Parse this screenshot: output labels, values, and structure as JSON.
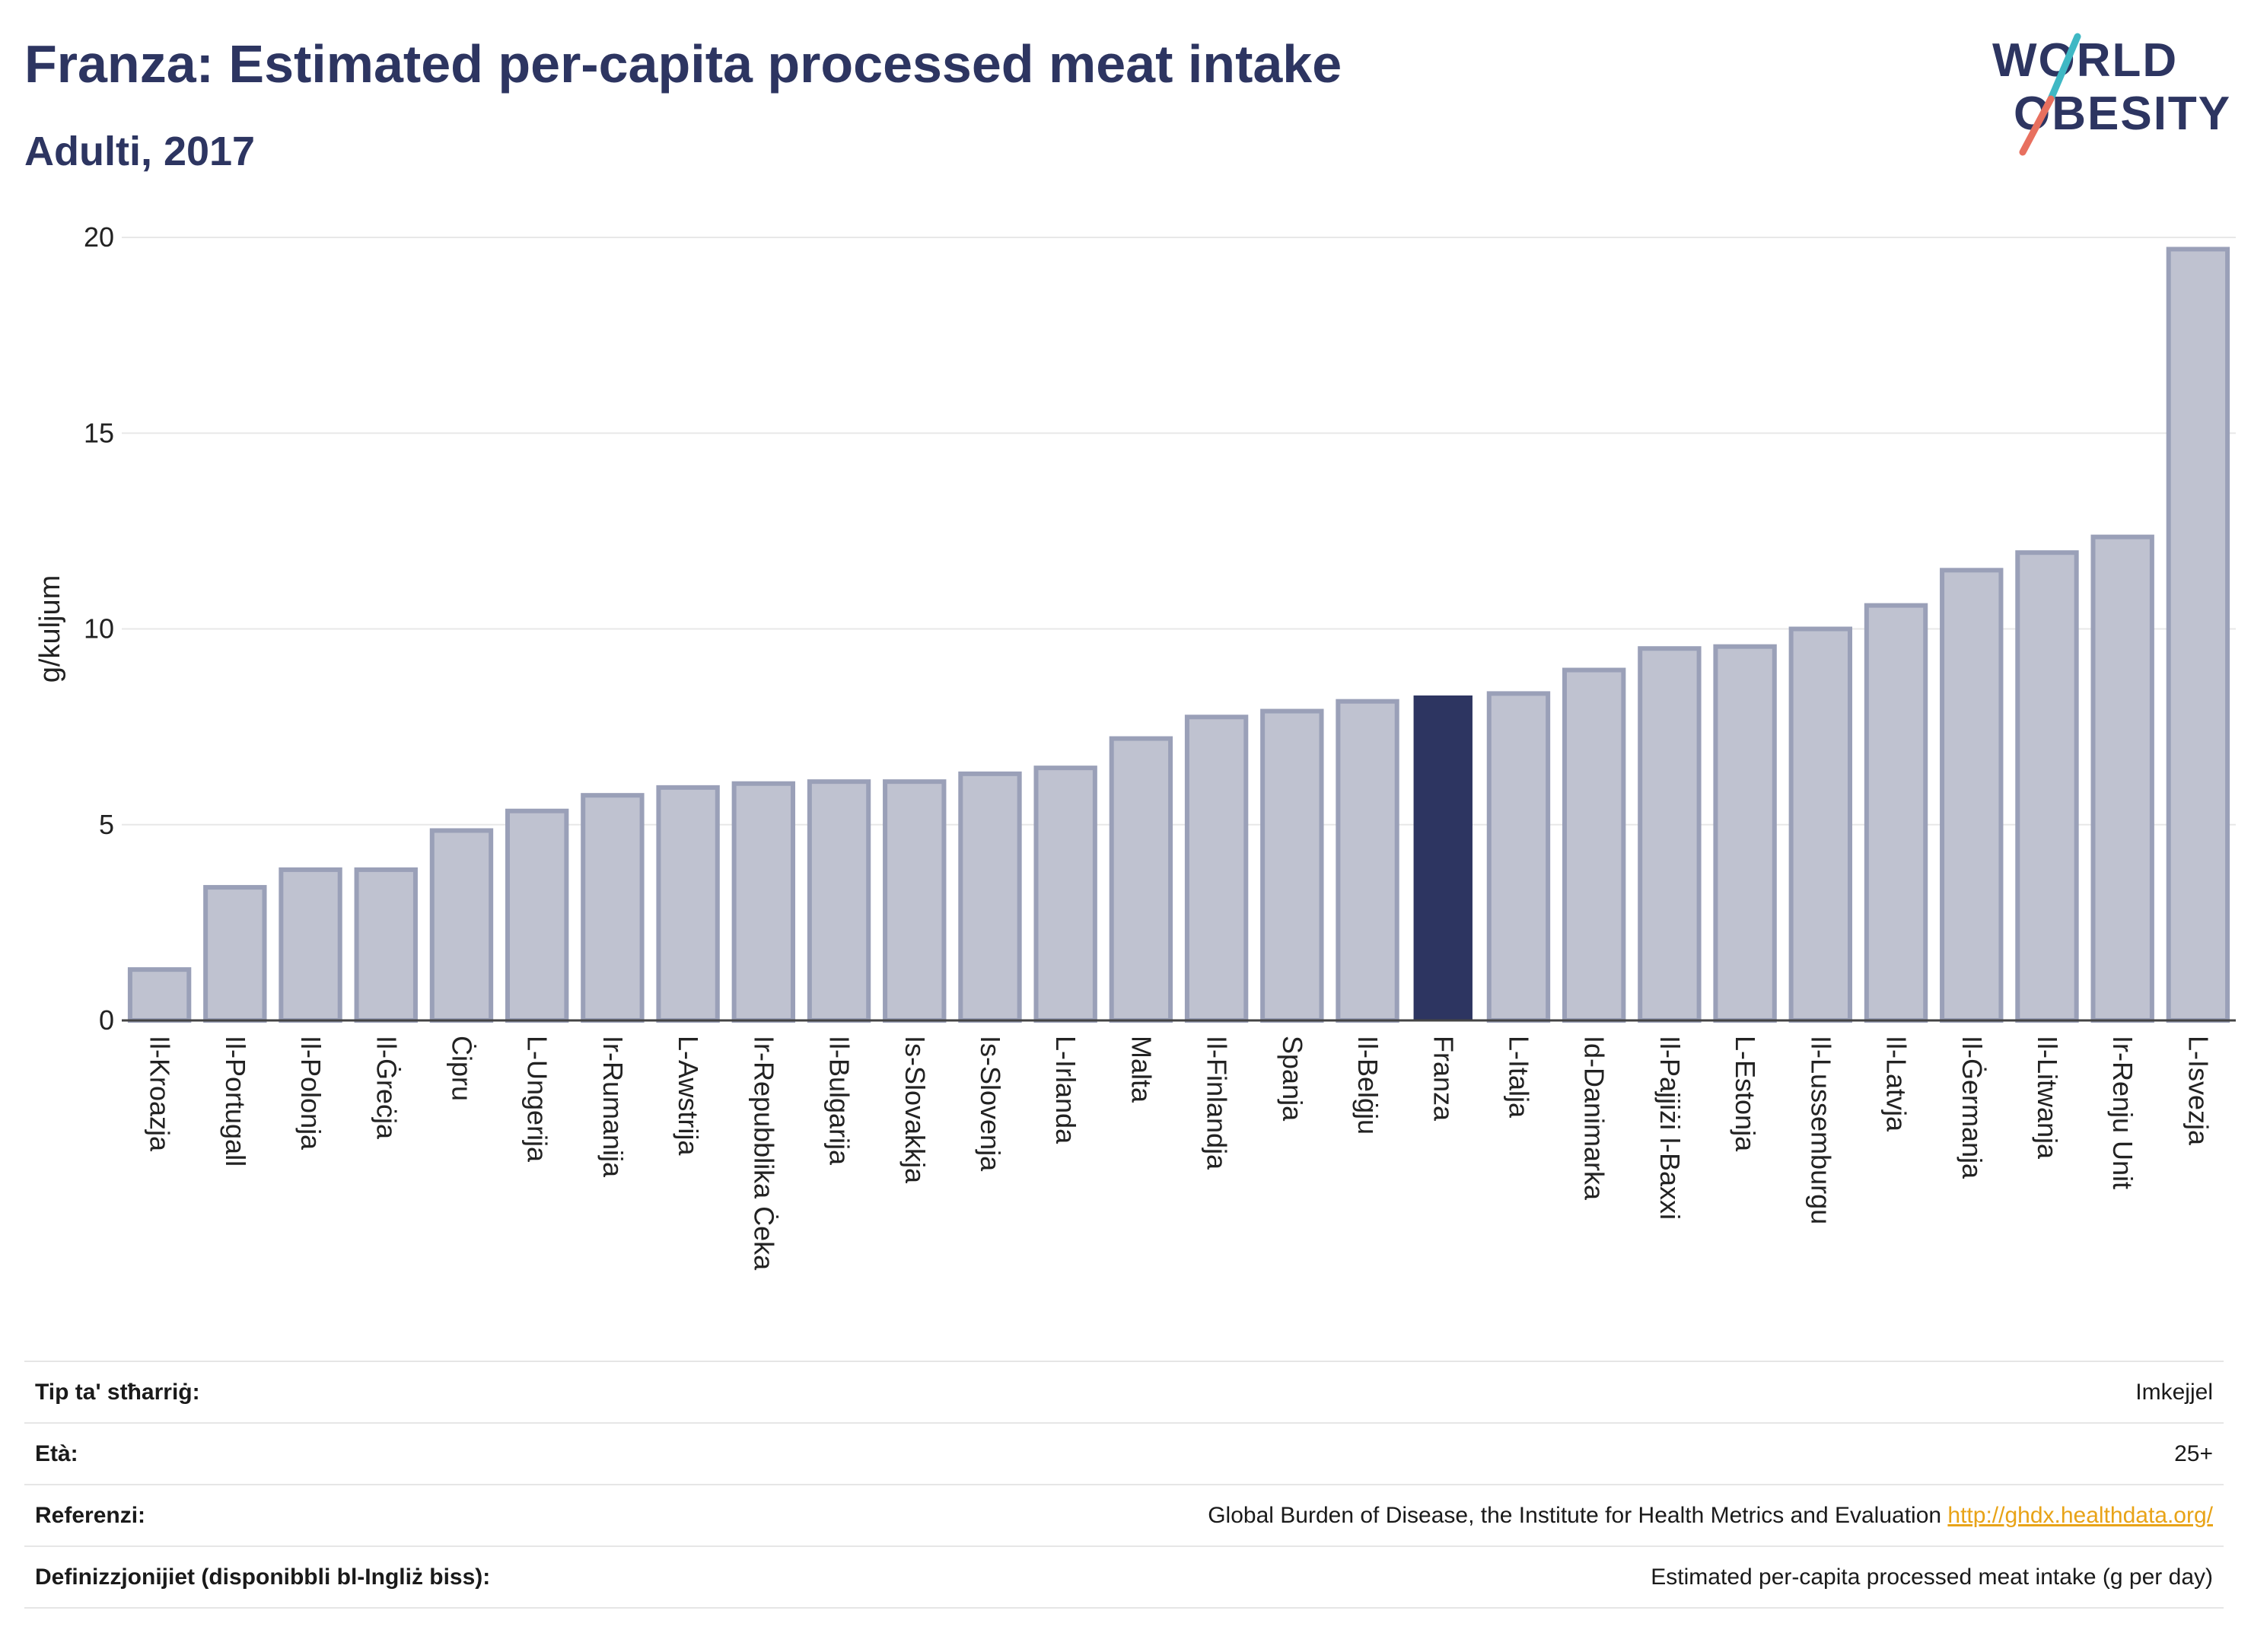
{
  "header": {
    "title": "Franza: Estimated per-capita processed meat intake",
    "subtitle": "Adulti, 2017"
  },
  "logo": {
    "line1": "WORLD",
    "line2": "OBESITY"
  },
  "colors": {
    "highlight": "#2d3561",
    "bar_fill": "#bfc2d0",
    "bar_stroke": "#9aa0b8",
    "grid": "#e8e8e8",
    "logo_teal": "#3fb8c4",
    "logo_coral": "#e8705f"
  },
  "chart_data": {
    "type": "bar",
    "title": "Franza: Estimated per-capita processed meat intake",
    "subtitle": "Adulti, 2017",
    "ylabel": "g/kuljum",
    "xlabel": "",
    "ylim": [
      0,
      20
    ],
    "yticks": [
      0,
      5,
      10,
      15,
      20
    ],
    "grid": true,
    "highlight_category": "Franza",
    "categories": [
      "Il-Kroazja",
      "Il-Portugall",
      "Il-Polonja",
      "Il-Ġreċja",
      "Ċipru",
      "L-Ungerija",
      "Ir-Rumanija",
      "L-Awstrija",
      "Ir-Repubblika Ċeka",
      "Il-Bulgarija",
      "Is-Slovakkja",
      "Is-Slovenja",
      "L-Irlanda",
      "Malta",
      "Il-Finlandja",
      "Spanja",
      "Il-Belġju",
      "Franza",
      "L-Italja",
      "Id-Danimarka",
      "Il-Pajjiżi l-Baxxi",
      "L-Estonja",
      "Il-Lussemburgu",
      "Il-Latvja",
      "Il-Ġermanja",
      "Il-Litwanja",
      "Ir-Renju Unit",
      "L-Isvezja"
    ],
    "values": [
      1.3,
      3.4,
      3.85,
      3.85,
      4.85,
      5.35,
      5.75,
      5.95,
      6.05,
      6.1,
      6.1,
      6.3,
      6.45,
      7.2,
      7.75,
      7.9,
      8.15,
      8.3,
      8.35,
      8.95,
      9.5,
      9.55,
      10.0,
      10.6,
      11.5,
      11.95,
      12.35,
      19.7
    ]
  },
  "footer": {
    "rows": [
      {
        "label": "Tip ta' stħarriġ:",
        "value": "Imkejjel"
      },
      {
        "label": "Età:",
        "value": "25+"
      },
      {
        "label": "Referenzi:",
        "value": "Global Burden of Disease, the Institute for Health Metrics and Evaluation ",
        "link": "http://ghdx.healthdata.org/"
      },
      {
        "label": "Definizzjonijiet (disponibbli bl-Ingliż biss):",
        "value": "Estimated per-capita processed meat intake (g per day)"
      }
    ]
  }
}
